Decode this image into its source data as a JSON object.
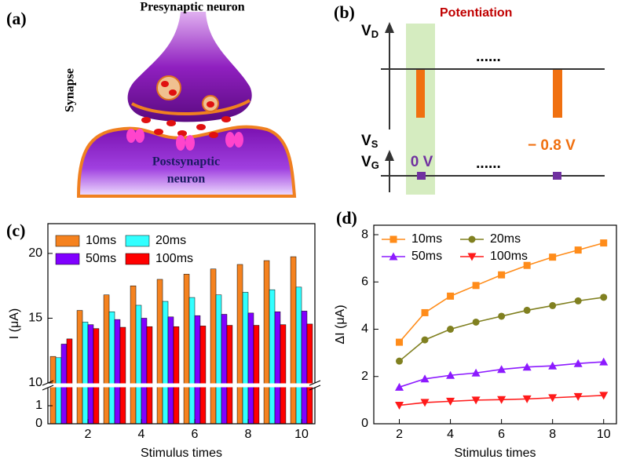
{
  "panel_labels": [
    "(a)",
    "(b)",
    "(c)",
    "(d)"
  ],
  "diagram_a": {
    "top_label": "Presynaptic neuron",
    "side_label": "Synapse",
    "bottom_label": [
      "Postsynaptic",
      "neuron"
    ]
  },
  "diagram_b": {
    "title": "Potentiation",
    "vd": {
      "main": "V",
      "sub": "D"
    },
    "vs": {
      "main": "V",
      "sub": "S"
    },
    "vg": {
      "main": "V",
      "sub": "G"
    },
    "ellipsis": "......",
    "gate_label": "0 V",
    "pulse_label": "− 0.8 V"
  },
  "chart_data": [
    {
      "type": "bar",
      "xlabel": "Stimulus times",
      "ylabel": "I (μA)",
      "x": [
        1,
        2,
        3,
        4,
        5,
        6,
        7,
        8,
        9,
        10
      ],
      "xlim": [
        0.5,
        10.5
      ],
      "xticks": [
        2,
        4,
        6,
        8,
        10
      ],
      "ylim": [
        0,
        22.3
      ],
      "ybreak": [
        2,
        10
      ],
      "yticks": [
        0,
        1,
        10,
        15,
        20
      ],
      "legend": "upper left",
      "series": [
        {
          "name": "10ms",
          "color": "#f5821f",
          "values": [
            12.05,
            15.6,
            16.8,
            17.5,
            18.0,
            18.4,
            18.8,
            19.15,
            19.45,
            19.75
          ]
        },
        {
          "name": "20ms",
          "color": "#33ffff",
          "values": [
            11.95,
            14.7,
            15.5,
            16.0,
            16.3,
            16.6,
            16.8,
            17.0,
            17.2,
            17.4
          ]
        },
        {
          "name": "50ms",
          "color": "#8000ff",
          "values": [
            13.0,
            14.5,
            14.9,
            15.0,
            15.1,
            15.2,
            15.3,
            15.4,
            15.5,
            15.55
          ]
        },
        {
          "name": "100ms",
          "color": "#ff0000",
          "values": [
            13.4,
            14.2,
            14.3,
            14.35,
            14.35,
            14.4,
            14.45,
            14.45,
            14.5,
            14.55
          ]
        }
      ]
    },
    {
      "type": "line",
      "xlabel": "Stimulus times",
      "ylabel": "ΔI (μA)",
      "x": [
        2,
        3,
        4,
        5,
        6,
        7,
        8,
        9,
        10
      ],
      "xlim": [
        1,
        10.5
      ],
      "xticks": [
        2,
        4,
        6,
        8,
        10
      ],
      "ylim": [
        0,
        8.4
      ],
      "yticks": [
        0,
        2,
        4,
        6,
        8
      ],
      "legend": "upper left",
      "series": [
        {
          "name": "10ms",
          "color": "#ff8c1a",
          "marker": "square",
          "values": [
            3.45,
            4.7,
            5.4,
            5.85,
            6.3,
            6.7,
            7.05,
            7.35,
            7.65
          ]
        },
        {
          "name": "20ms",
          "color": "#808020",
          "marker": "circle",
          "values": [
            2.65,
            3.55,
            4.0,
            4.3,
            4.55,
            4.8,
            5.0,
            5.2,
            5.35
          ]
        },
        {
          "name": "50ms",
          "color": "#8c1aff",
          "marker": "triangle-up",
          "values": [
            1.55,
            1.9,
            2.05,
            2.15,
            2.3,
            2.4,
            2.45,
            2.55,
            2.62
          ]
        },
        {
          "name": "100ms",
          "color": "#ff1a1a",
          "marker": "triangle-down",
          "values": [
            0.78,
            0.9,
            0.95,
            1.0,
            1.02,
            1.05,
            1.1,
            1.15,
            1.2
          ]
        }
      ]
    }
  ]
}
